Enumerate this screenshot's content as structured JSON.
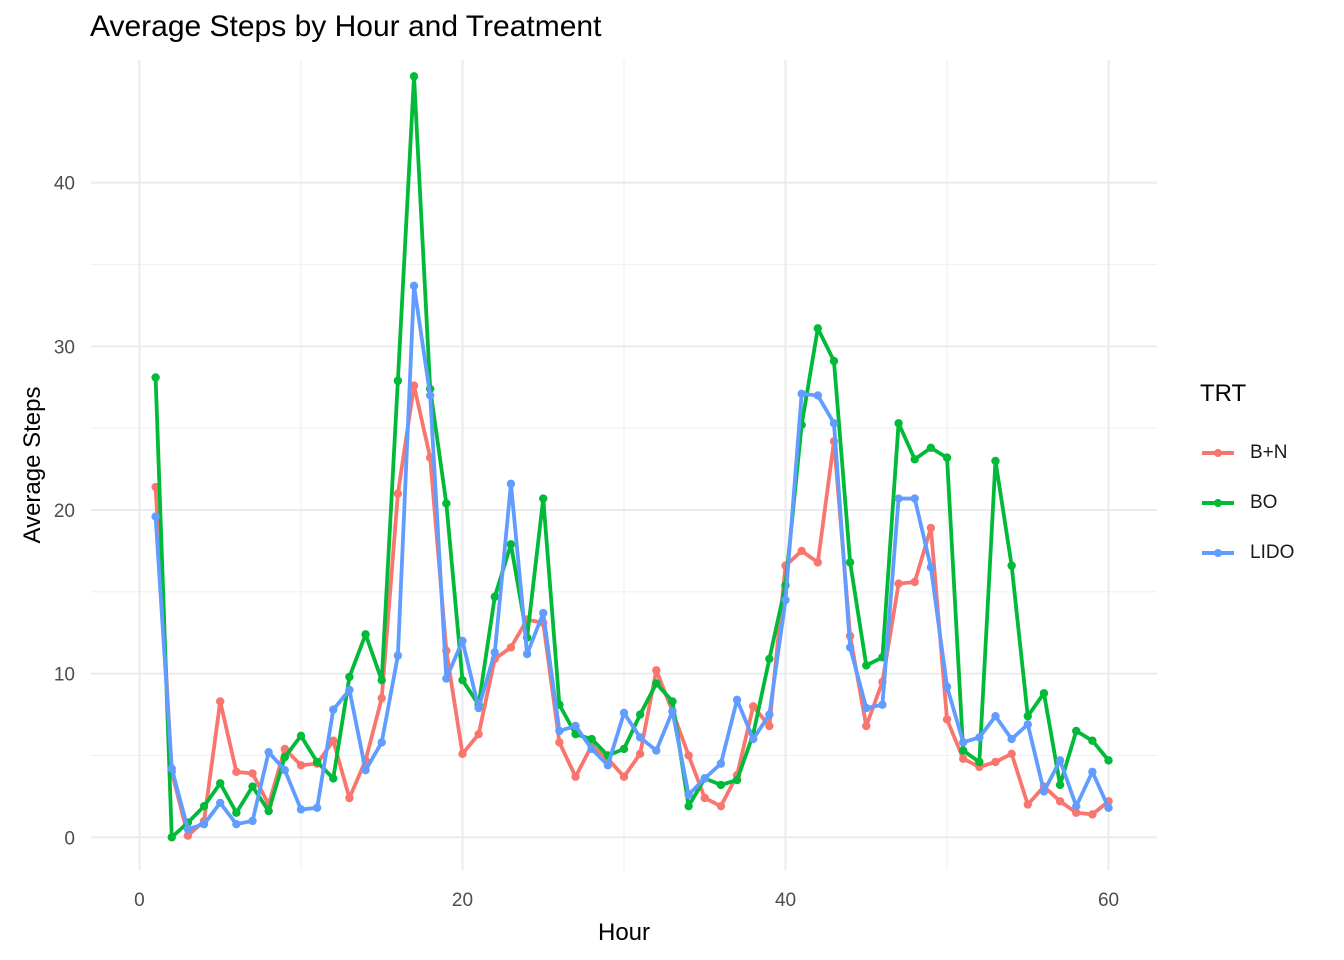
{
  "chart_data": {
    "type": "line",
    "title": "Average Steps by Hour and Treatment",
    "xlabel": "Hour",
    "ylabel": "Average Steps",
    "xlim": [
      -3,
      63
    ],
    "ylim": [
      -2,
      47.5
    ],
    "xticks": [
      0,
      20,
      40,
      60
    ],
    "yticks": [
      0,
      10,
      20,
      30,
      40
    ],
    "grid": true,
    "legend": {
      "title": "TRT",
      "position": "right"
    },
    "x": [
      1,
      2,
      3,
      4,
      5,
      6,
      7,
      8,
      9,
      10,
      11,
      12,
      13,
      14,
      15,
      16,
      17,
      18,
      19,
      20,
      21,
      22,
      23,
      24,
      25,
      26,
      27,
      28,
      29,
      30,
      31,
      32,
      33,
      34,
      35,
      36,
      37,
      38,
      39,
      40,
      41,
      42,
      43,
      44,
      45,
      46,
      47,
      48,
      49,
      50,
      51,
      52,
      53,
      54,
      55,
      56,
      57,
      58,
      59,
      60
    ],
    "series": [
      {
        "name": "B+N",
        "color": "#F8766D",
        "values": [
          21.4,
          4.0,
          0.1,
          1.0,
          8.3,
          4.0,
          3.9,
          2.0,
          5.4,
          4.4,
          4.5,
          5.9,
          2.4,
          4.7,
          8.5,
          21.0,
          27.6,
          23.2,
          11.4,
          5.1,
          6.3,
          10.9,
          11.6,
          13.3,
          13.1,
          5.8,
          3.7,
          5.6,
          4.8,
          3.7,
          5.1,
          10.2,
          7.7,
          5.0,
          2.4,
          1.9,
          3.8,
          8.0,
          6.8,
          16.6,
          17.5,
          16.8,
          24.2,
          12.3,
          6.8,
          9.5,
          15.5,
          15.6,
          18.9,
          7.2,
          4.8,
          4.3,
          4.6,
          5.1,
          2.0,
          3.1,
          2.2,
          1.5,
          1.4,
          2.2
        ]
      },
      {
        "name": "BO",
        "color": "#00BA38",
        "values": [
          28.1,
          0.0,
          0.9,
          1.9,
          3.3,
          1.5,
          3.1,
          1.6,
          4.9,
          6.2,
          4.6,
          3.6,
          9.8,
          12.4,
          9.6,
          27.9,
          46.5,
          27.4,
          20.4,
          9.6,
          8.1,
          14.7,
          17.9,
          12.2,
          20.7,
          8.1,
          6.3,
          6.0,
          5.0,
          5.4,
          7.5,
          9.4,
          8.3,
          1.9,
          3.6,
          3.2,
          3.5,
          6.3,
          10.9,
          15.4,
          25.2,
          31.1,
          29.1,
          16.8,
          10.5,
          11.0,
          25.3,
          23.1,
          23.8,
          23.2,
          5.3,
          4.6,
          23.0,
          16.6,
          7.4,
          8.8,
          3.2,
          6.5,
          5.9,
          4.7
        ]
      },
      {
        "name": "LIDO",
        "color": "#619CFF",
        "values": [
          19.6,
          4.2,
          0.5,
          0.8,
          2.1,
          0.8,
          1.0,
          5.2,
          4.1,
          1.7,
          1.8,
          7.8,
          9.0,
          4.1,
          5.8,
          11.1,
          33.7,
          27.0,
          9.7,
          12.0,
          7.9,
          11.3,
          21.6,
          11.2,
          13.7,
          6.5,
          6.8,
          5.4,
          4.4,
          7.6,
          6.1,
          5.3,
          7.7,
          2.6,
          3.6,
          4.5,
          8.4,
          6.0,
          7.5,
          14.5,
          27.1,
          27.0,
          25.3,
          11.6,
          7.9,
          8.1,
          20.7,
          20.7,
          16.5,
          9.2,
          5.8,
          6.1,
          7.4,
          6.0,
          6.9,
          2.8,
          4.7,
          1.9,
          4.0,
          1.8
        ]
      }
    ]
  }
}
